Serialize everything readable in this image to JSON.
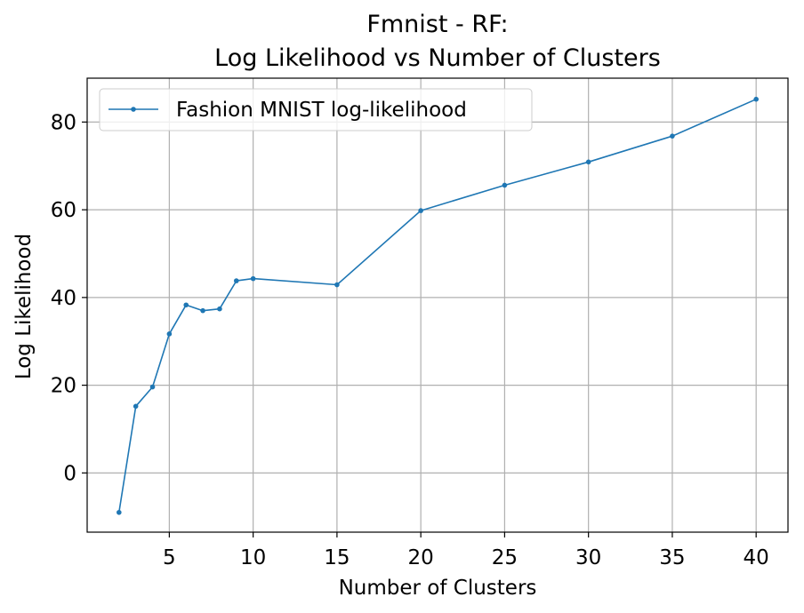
{
  "chart_data": {
    "type": "line",
    "title_line1": "Fmnist - RF:",
    "title_line2": "Log Likelihood vs Number of Clusters",
    "xlabel": "Number of Clusters",
    "ylabel": "Log Likelihood",
    "xlim": [
      0.1,
      41.9
    ],
    "ylim": [
      -13.5,
      90.0
    ],
    "xticks": [
      5,
      10,
      15,
      20,
      25,
      30,
      35,
      40
    ],
    "yticks": [
      0,
      20,
      40,
      60,
      80
    ],
    "xtick_labels": [
      "5",
      "10",
      "15",
      "20",
      "25",
      "30",
      "35",
      "40"
    ],
    "ytick_labels": [
      "0",
      "20",
      "40",
      "60",
      "80"
    ],
    "grid": true,
    "legend_position": "top-left",
    "series": [
      {
        "name": "Fashion MNIST log-likelihood",
        "color": "#1f77b4",
        "x": [
          2,
          3,
          4,
          5,
          6,
          7,
          8,
          9,
          10,
          15,
          20,
          25,
          30,
          35,
          40
        ],
        "y": [
          -9.0,
          15.2,
          19.6,
          31.7,
          38.3,
          37.0,
          37.4,
          43.8,
          44.3,
          42.9,
          59.8,
          65.6,
          70.9,
          76.8,
          85.2
        ]
      }
    ]
  }
}
